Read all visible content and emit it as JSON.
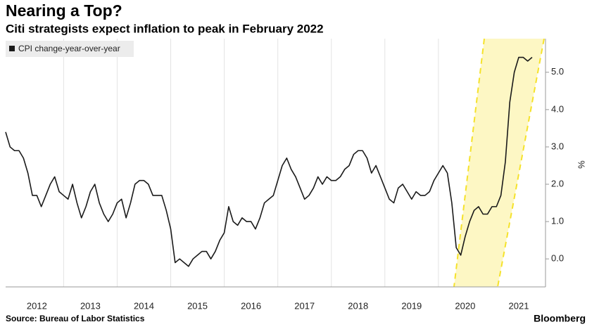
{
  "chart_data": {
    "type": "line",
    "title": "Nearing a Top?",
    "subtitle": "Citi strategists expect inflation to peak in February 2022",
    "source": "Source: Bureau of Labor Statistics",
    "brand": "Bloomberg",
    "ylabel": "%",
    "x": [
      2011.917,
      2012.0,
      2012.083,
      2012.167,
      2012.25,
      2012.333,
      2012.417,
      2012.5,
      2012.583,
      2012.667,
      2012.75,
      2012.833,
      2012.917,
      2013.0,
      2013.083,
      2013.167,
      2013.25,
      2013.333,
      2013.417,
      2013.5,
      2013.583,
      2013.667,
      2013.75,
      2013.833,
      2013.917,
      2014.0,
      2014.083,
      2014.167,
      2014.25,
      2014.333,
      2014.417,
      2014.5,
      2014.583,
      2014.667,
      2014.75,
      2014.833,
      2014.917,
      2015.0,
      2015.083,
      2015.167,
      2015.25,
      2015.333,
      2015.417,
      2015.5,
      2015.583,
      2015.667,
      2015.75,
      2015.833,
      2015.917,
      2016.0,
      2016.083,
      2016.167,
      2016.25,
      2016.333,
      2016.417,
      2016.5,
      2016.583,
      2016.667,
      2016.75,
      2016.833,
      2016.917,
      2017.0,
      2017.083,
      2017.167,
      2017.25,
      2017.333,
      2017.417,
      2017.5,
      2017.583,
      2017.667,
      2017.75,
      2017.833,
      2017.917,
      2018.0,
      2018.083,
      2018.167,
      2018.25,
      2018.333,
      2018.417,
      2018.5,
      2018.583,
      2018.667,
      2018.75,
      2018.833,
      2018.917,
      2019.0,
      2019.083,
      2019.167,
      2019.25,
      2019.333,
      2019.417,
      2019.5,
      2019.583,
      2019.667,
      2019.75,
      2019.833,
      2019.917,
      2020.0,
      2020.083,
      2020.167,
      2020.25,
      2020.333,
      2020.417,
      2020.5,
      2020.583,
      2020.667,
      2020.75,
      2020.833,
      2020.917,
      2021.0,
      2021.083,
      2021.167,
      2021.25,
      2021.333,
      2021.417,
      2021.5,
      2021.583,
      2021.667,
      2021.75
    ],
    "series": [
      {
        "name": "CPI change-year-over-year",
        "color": "#1a1a1a",
        "values": [
          3.4,
          3.0,
          2.9,
          2.9,
          2.7,
          2.3,
          1.7,
          1.7,
          1.4,
          1.7,
          2.0,
          2.2,
          1.8,
          1.7,
          1.6,
          2.0,
          1.5,
          1.1,
          1.4,
          1.8,
          2.0,
          1.5,
          1.2,
          1.0,
          1.2,
          1.5,
          1.6,
          1.1,
          1.5,
          2.0,
          2.1,
          2.1,
          2.0,
          1.7,
          1.7,
          1.7,
          1.3,
          0.8,
          -0.1,
          0.0,
          -0.1,
          -0.2,
          0.0,
          0.1,
          0.2,
          0.2,
          0.0,
          0.2,
          0.5,
          0.7,
          1.4,
          1.0,
          0.9,
          1.1,
          1.0,
          1.0,
          0.8,
          1.1,
          1.5,
          1.6,
          1.7,
          2.1,
          2.5,
          2.7,
          2.4,
          2.2,
          1.9,
          1.6,
          1.7,
          1.9,
          2.2,
          2.0,
          2.2,
          2.1,
          2.1,
          2.2,
          2.4,
          2.5,
          2.8,
          2.9,
          2.9,
          2.7,
          2.3,
          2.5,
          2.2,
          1.9,
          1.6,
          1.5,
          1.9,
          2.0,
          1.8,
          1.6,
          1.8,
          1.7,
          1.7,
          1.8,
          2.1,
          2.3,
          2.5,
          2.3,
          1.5,
          0.3,
          0.1,
          0.6,
          1.0,
          1.3,
          1.4,
          1.2,
          1.2,
          1.4,
          1.4,
          1.7,
          2.6,
          4.2,
          5.0,
          5.4,
          5.4,
          5.3,
          5.4
        ]
      }
    ],
    "xlim": [
      2011.917,
      2022.0
    ],
    "xticks": [
      {
        "value": 2012.5,
        "label": "2012"
      },
      {
        "value": 2013.5,
        "label": "2013"
      },
      {
        "value": 2014.5,
        "label": "2014"
      },
      {
        "value": 2015.5,
        "label": "2015"
      },
      {
        "value": 2016.5,
        "label": "2016"
      },
      {
        "value": 2017.5,
        "label": "2017"
      },
      {
        "value": 2018.5,
        "label": "2018"
      },
      {
        "value": 2019.5,
        "label": "2019"
      },
      {
        "value": 2020.5,
        "label": "2020"
      },
      {
        "value": 2021.5,
        "label": "2021"
      }
    ],
    "xgrid": [
      2013,
      2014,
      2015,
      2016,
      2017,
      2018,
      2019,
      2020,
      2021
    ],
    "ylim": [
      -0.75,
      5.9
    ],
    "yticks": [
      {
        "value": 0,
        "label": "0.0"
      },
      {
        "value": 1,
        "label": "1.0"
      },
      {
        "value": 2,
        "label": "2.0"
      },
      {
        "value": 3,
        "label": "3.0"
      },
      {
        "value": 4,
        "label": "4.0"
      },
      {
        "value": 5,
        "label": "5.0"
      }
    ],
    "grid": true
  }
}
